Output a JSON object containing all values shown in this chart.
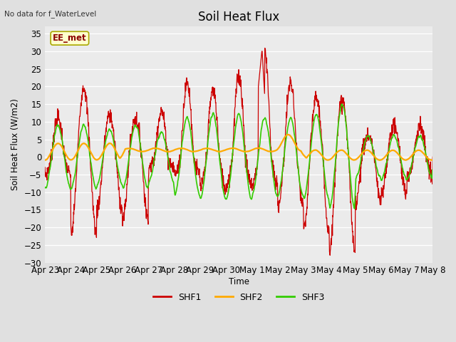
{
  "title": "Soil Heat Flux",
  "top_left_text": "No data for f_WaterLevel",
  "station_label": "EE_met",
  "ylabel": "Soil Heat Flux (W/m2)",
  "xlabel": "Time",
  "ylim": [
    -30,
    37
  ],
  "yticks": [
    -30,
    -25,
    -20,
    -15,
    -10,
    -5,
    0,
    5,
    10,
    15,
    20,
    25,
    30,
    35
  ],
  "xtick_labels": [
    "Apr 23",
    "Apr 24",
    "Apr 25",
    "Apr 26",
    "Apr 27",
    "Apr 28",
    "Apr 29",
    "Apr 30",
    "May 1",
    "May 2",
    "May 3",
    "May 4",
    "May 5",
    "May 6",
    "May 7",
    "May 8"
  ],
  "background_color": "#e0e0e0",
  "plot_bg_color": "#ebebeb",
  "shf1_color": "#cc0000",
  "shf2_color": "#ffaa00",
  "shf3_color": "#33cc00",
  "legend_labels": [
    "SHF1",
    "SHF2",
    "SHF3"
  ]
}
